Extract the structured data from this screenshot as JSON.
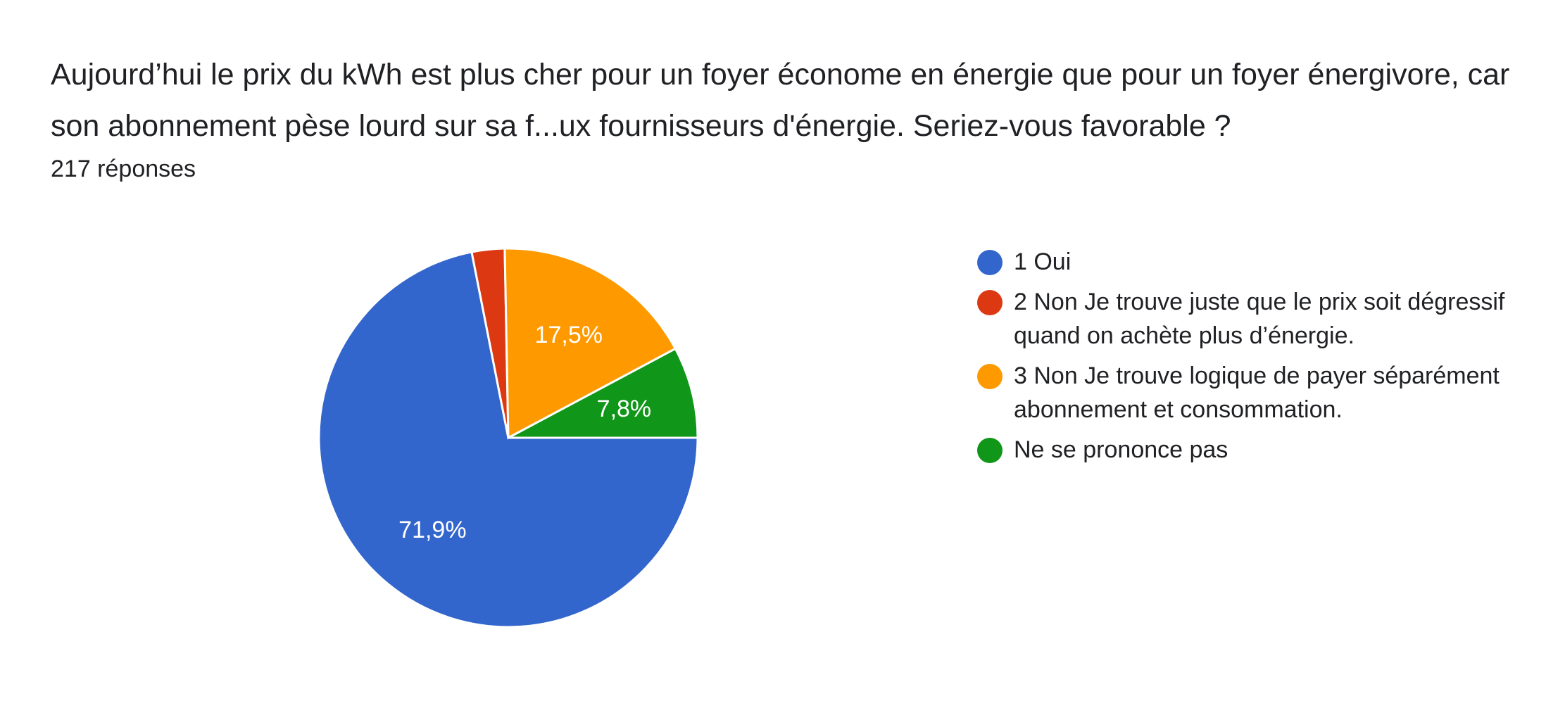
{
  "question": {
    "title": " Aujourd’hui le prix du kWh est plus cher pour un foyer économe en énergie que pour un foyer énergivore, car son abonnement pèse lourd sur sa f...ux fournisseurs d'énergie. Seriez-vous favorable ?",
    "response_count": "217 réponses"
  },
  "chart_data": {
    "type": "pie",
    "title": "",
    "total_responses": 217,
    "slices": [
      {
        "label": "1 Oui",
        "value": 71.9,
        "display": "71,9%",
        "color": "#3366cc"
      },
      {
        "label": "2 Non Je trouve juste que le prix soit dégressif quand on achète plus d’énergie.",
        "value": 2.8,
        "display": "",
        "color": "#dc3912"
      },
      {
        "label": "3 Non Je trouve logique de payer séparément abonnement et consommation.",
        "value": 17.5,
        "display": "17,5%",
        "color": "#ff9900"
      },
      {
        "label": "Ne se prononce pas",
        "value": 7.8,
        "display": "7,8%",
        "color": "#109618"
      }
    ],
    "start_angle": "right, going clockwise",
    "legend_position": "right"
  }
}
